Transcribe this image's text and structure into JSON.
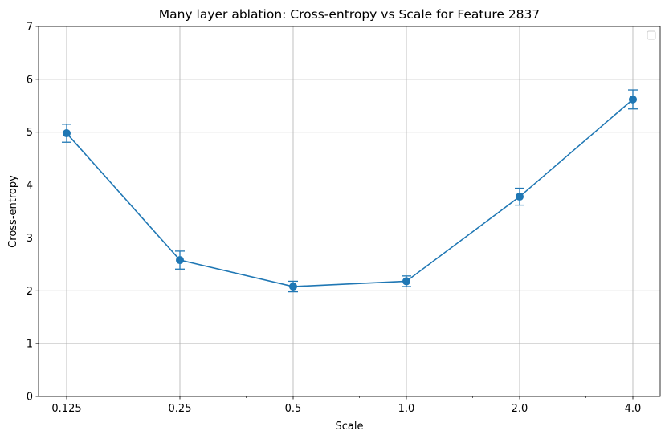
{
  "chart_data": {
    "type": "line",
    "title": "Many layer ablation: Cross-entropy vs Scale for Feature 2837",
    "xlabel": "Scale",
    "ylabel": "Cross-entropy",
    "x_scale": "log2",
    "x_ticks": [
      0.125,
      0.25,
      0.5,
      1.0,
      2.0,
      4.0
    ],
    "x_tick_labels": [
      "0.125",
      "0.25",
      "0.5",
      "1.0",
      "2.0",
      "4.0"
    ],
    "ylim": [
      0,
      7
    ],
    "y_ticks": [
      0,
      1,
      2,
      3,
      4,
      5,
      6,
      7
    ],
    "y_tick_labels": [
      "0",
      "1",
      "2",
      "3",
      "4",
      "5",
      "6",
      "7"
    ],
    "grid": true,
    "legend": "top-right (empty)",
    "series": [
      {
        "x": [
          0.125,
          0.25,
          0.5,
          1.0,
          2.0,
          4.0
        ],
        "y": [
          4.98,
          2.58,
          2.08,
          2.18,
          3.78,
          5.62
        ],
        "yerr": [
          0.17,
          0.17,
          0.1,
          0.1,
          0.16,
          0.18
        ],
        "color": "#1f77b4",
        "marker": "circle"
      }
    ]
  }
}
